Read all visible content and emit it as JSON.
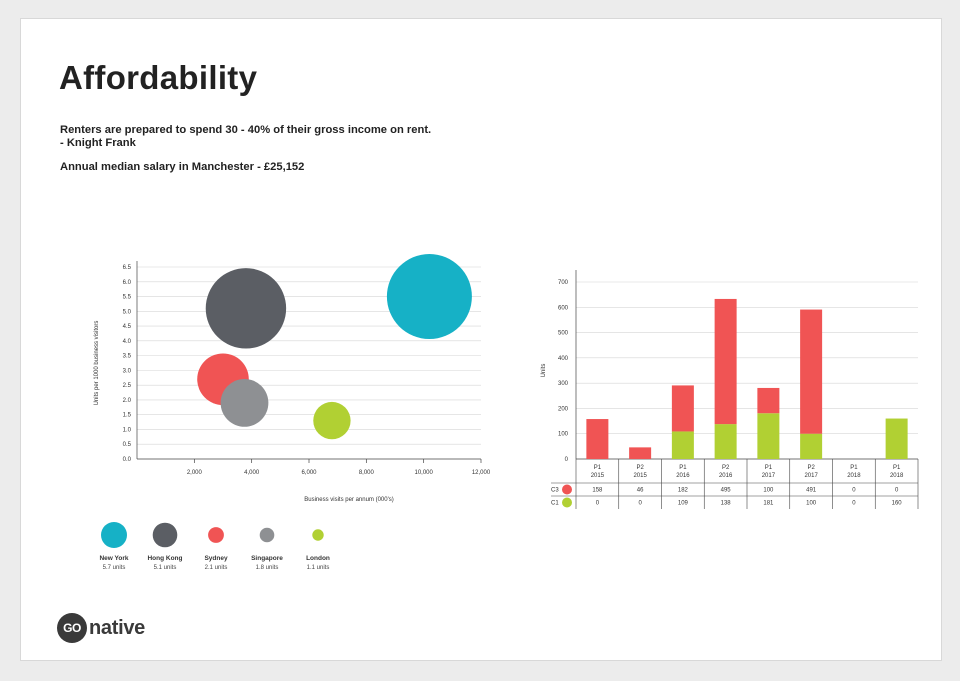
{
  "slide": {
    "title": "Affordability",
    "paragraph1_line1": "Renters are prepared to spend 30 - 40% of their gross income on rent.",
    "paragraph1_line2": "- Knight Frank",
    "paragraph2": "Annual median salary in Manchester - £25,152"
  },
  "logo": {
    "circle_text": "GO",
    "text": "native"
  },
  "colors": {
    "new_york": "#16b1c6",
    "hong_kong": "#5b5e64",
    "sydney": "#f05454",
    "singapore": "#8e9093",
    "london": "#b1d033",
    "grid": "#d6d6d6",
    "axis": "#444444"
  },
  "chart_data": [
    {
      "type": "scatter",
      "subtype": "bubble",
      "xlabel": "Business visits per annum (000's)",
      "ylabel": "Units per 1000 business visitors",
      "xlim": [
        0,
        12000
      ],
      "ylim": [
        0,
        6.5
      ],
      "xticks": [
        "2,000",
        "4,000",
        "6,000",
        "8,000",
        "10,000",
        "12,000"
      ],
      "yticks": [
        "0.0",
        "0.5",
        "1.0",
        "1.5",
        "2.0",
        "2.5",
        "3.0",
        "3.5",
        "4.0",
        "4.5",
        "5.0",
        "5.5",
        "6.0",
        "6.5"
      ],
      "grid": true,
      "series": [
        {
          "name": "New York",
          "units_label": "5.7 units",
          "x": 10200,
          "y": 5.5,
          "size": 5.7,
          "color": "#16b1c6"
        },
        {
          "name": "Hong Kong",
          "units_label": "5.1 units",
          "x": 3800,
          "y": 5.1,
          "size": 5.1,
          "color": "#5b5e64"
        },
        {
          "name": "Sydney",
          "units_label": "2.1 units",
          "x": 3000,
          "y": 2.7,
          "size": 2.1,
          "color": "#f05454"
        },
        {
          "name": "Singapore",
          "units_label": "1.8 units",
          "x": 3750,
          "y": 1.9,
          "size": 1.8,
          "color": "#8e9093"
        },
        {
          "name": "London",
          "units_label": "1.1 units",
          "x": 6800,
          "y": 1.3,
          "size": 1.1,
          "color": "#b1d033"
        }
      ],
      "legend": "bottom"
    },
    {
      "type": "bar",
      "stacked": true,
      "ylabel": "Units",
      "ylim": [
        0,
        700
      ],
      "yticks": [
        "0",
        "100",
        "200",
        "300",
        "400",
        "500",
        "600",
        "700"
      ],
      "categories": [
        [
          "P1",
          "2015"
        ],
        [
          "P2",
          "2015"
        ],
        [
          "P1",
          "2016"
        ],
        [
          "P2",
          "2016"
        ],
        [
          "P1",
          "2017"
        ],
        [
          "P2",
          "2017"
        ],
        [
          "P1",
          "2018"
        ],
        [
          "P1",
          "2018"
        ]
      ],
      "series": [
        {
          "name": "C1",
          "color": "#b1d033",
          "values": [
            0,
            0,
            109,
            138,
            181,
            100,
            0,
            160
          ],
          "labels": [
            "0",
            "0",
            "109",
            "138",
            "181",
            "100",
            "0",
            "160"
          ]
        },
        {
          "name": "C3",
          "color": "#f05454",
          "values": [
            158,
            46,
            182,
            495,
            100,
            491,
            0,
            0
          ],
          "labels": [
            "158",
            "46",
            "182",
            "495",
            "100",
            "491",
            "0",
            "0"
          ]
        }
      ],
      "table_order": [
        "C3",
        "C1"
      ],
      "grid": true
    }
  ]
}
